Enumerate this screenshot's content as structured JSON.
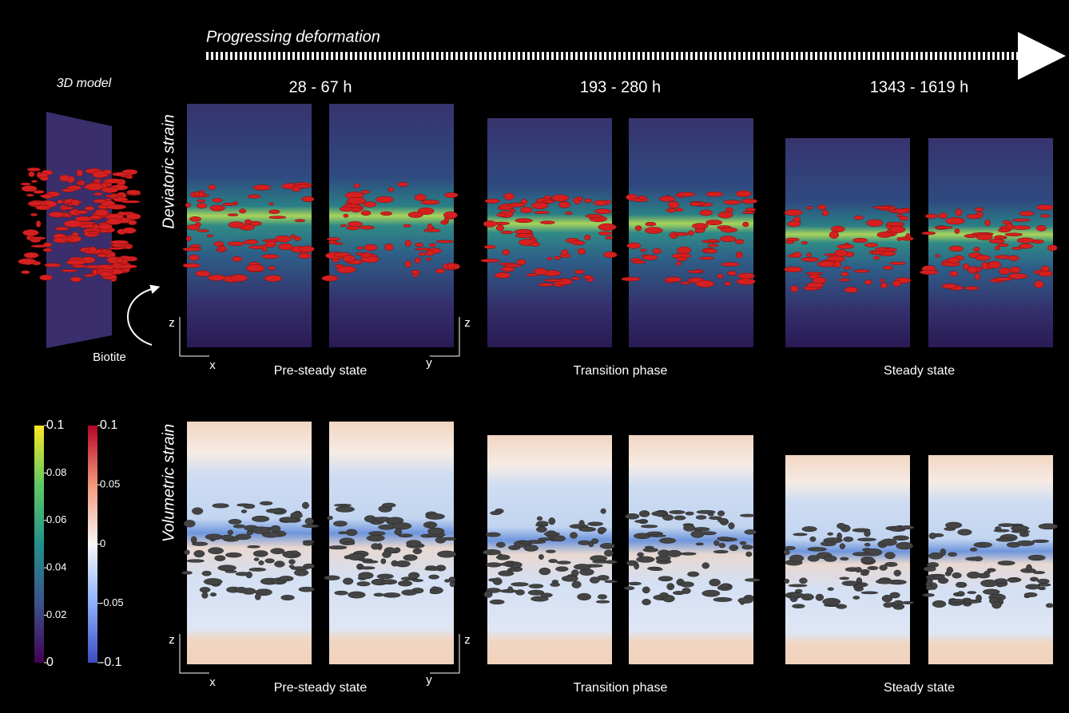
{
  "header": {
    "arrow_label": "Progressing deformation"
  },
  "model": {
    "title": "3D model",
    "label": "Biotite"
  },
  "phases": [
    {
      "time": "28 - 67 h",
      "label": "Pre-steady state"
    },
    {
      "time": "193 - 280 h",
      "label": "Transition phase"
    },
    {
      "time": "1343 - 1619 h",
      "label": "Steady state"
    }
  ],
  "rows": [
    {
      "label": "Deviatoric strain"
    },
    {
      "label": "Volumetric strain"
    }
  ],
  "axes": {
    "left": [
      "z",
      "x"
    ],
    "right": [
      "y",
      "z"
    ]
  },
  "colorbars": [
    {
      "lim": [
        0,
        0.1
      ],
      "ticks": [
        0.1,
        0.08,
        0.06,
        0.04,
        0.02,
        0
      ]
    },
    {
      "lim": [
        -0.1,
        0.1
      ],
      "ticks": [
        0.1,
        0.05,
        0,
        -0.05,
        -0.1
      ]
    }
  ]
}
